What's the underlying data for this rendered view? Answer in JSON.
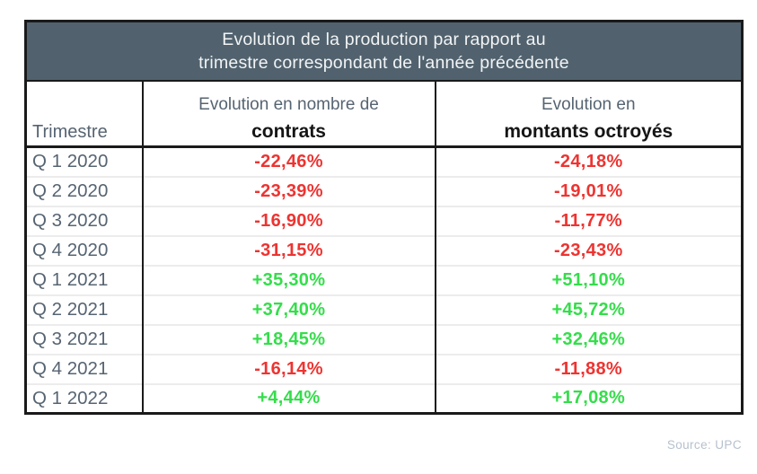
{
  "table": {
    "title_line1": "Evolution de la production par rapport au",
    "title_line2": "trimestre correspondant de l'année précédente",
    "columns": {
      "quarter_label": "Trimestre",
      "contracts_line1": "Evolution en nombre de",
      "contracts_line2": "contrats",
      "amounts_line1": "Evolution en",
      "amounts_line2": "montants octroyés"
    }
  },
  "source": "Source: UPC",
  "colors": {
    "header_bg": "#51626e",
    "border_dark": "#1a1a1a",
    "slate_text": "#566472",
    "negative": "#ed3431",
    "positive": "#35dd4b",
    "source_text": "#b6c1cd"
  },
  "chart_data": {
    "type": "table",
    "title": "Evolution de la production par rapport au trimestre correspondant de l'année précédente",
    "columns": [
      "Trimestre",
      "Evolution en nombre de contrats",
      "Evolution en montants octroyés"
    ],
    "rows": [
      {
        "quarter": "Q 1 2020",
        "contracts": "-22,46%",
        "amounts": "-24,18%"
      },
      {
        "quarter": "Q 2 2020",
        "contracts": "-23,39%",
        "amounts": "-19,01%"
      },
      {
        "quarter": "Q 3 2020",
        "contracts": "-16,90%",
        "amounts": "-11,77%"
      },
      {
        "quarter": "Q 4 2020",
        "contracts": "-31,15%",
        "amounts": "-23,43%"
      },
      {
        "quarter": "Q 1 2021",
        "contracts": "+35,30%",
        "amounts": "+51,10%"
      },
      {
        "quarter": "Q 2 2021",
        "contracts": "+37,40%",
        "amounts": "+45,72%"
      },
      {
        "quarter": "Q 3 2021",
        "contracts": "+18,45%",
        "amounts": "+32,46%"
      },
      {
        "quarter": "Q 4 2021",
        "contracts": "-16,14%",
        "amounts": "-11,88%"
      },
      {
        "quarter": "Q 1 2022",
        "contracts": "+4,44%",
        "amounts": "+17,08%"
      }
    ]
  }
}
